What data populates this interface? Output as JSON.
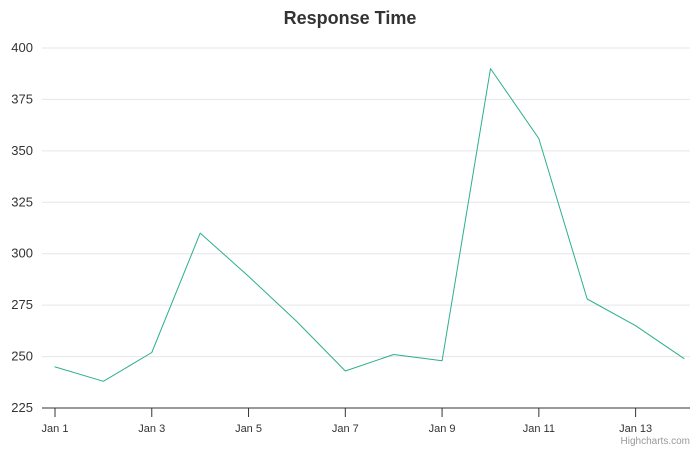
{
  "chart_data": {
    "type": "line",
    "title": "Response Time",
    "xlabel": "",
    "ylabel": "",
    "x": [
      "Jan 1",
      "Jan 2",
      "Jan 3",
      "Jan 4",
      "Jan 5",
      "Jan 6",
      "Jan 7",
      "Jan 8",
      "Jan 9",
      "Jan 10",
      "Jan 11",
      "Jan 12",
      "Jan 13",
      "Jan 14"
    ],
    "x_tick_labels": [
      "Jan 1",
      "Jan 3",
      "Jan 5",
      "Jan 7",
      "Jan 9",
      "Jan 11",
      "Jan 13"
    ],
    "y_ticks": [
      225,
      250,
      275,
      300,
      325,
      350,
      375,
      400
    ],
    "ylim": [
      225,
      400
    ],
    "grid": true,
    "legend": "none",
    "series": [
      {
        "color": "#2caf8e",
        "values": [
          245,
          238,
          252,
          310,
          289,
          267,
          243,
          251,
          248,
          390,
          356,
          278,
          265,
          249
        ]
      }
    ]
  },
  "credits": "Highcharts.com"
}
